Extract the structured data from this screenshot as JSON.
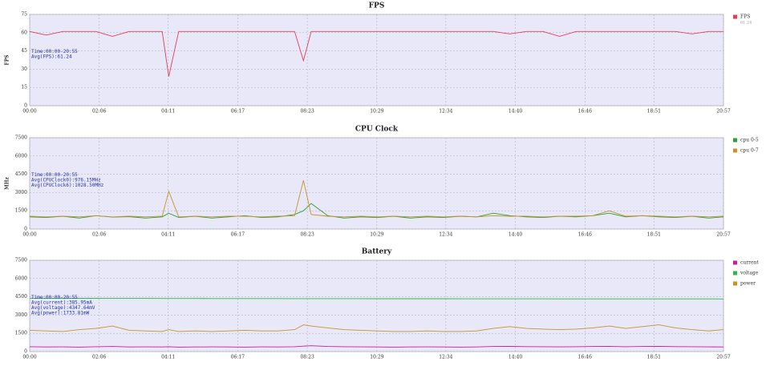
{
  "chart_data": [
    {
      "type": "line",
      "title": "FPS",
      "ylabel": "FPS",
      "x": [
        0,
        30,
        60,
        90,
        120,
        150,
        180,
        210,
        240,
        252,
        270,
        300,
        330,
        360,
        390,
        420,
        450,
        480,
        496,
        510,
        540,
        570,
        600,
        630,
        660,
        690,
        720,
        750,
        780,
        810,
        840,
        870,
        900,
        930,
        960,
        990,
        1020,
        1050,
        1080,
        1110,
        1140,
        1170,
        1200,
        1230,
        1257
      ],
      "xlim": [
        0,
        1257
      ],
      "xticks": [
        {
          "value": 0,
          "label": "00:00"
        },
        {
          "value": 126,
          "label": "02:06"
        },
        {
          "value": 251,
          "label": "04:11"
        },
        {
          "value": 377,
          "label": "06:17"
        },
        {
          "value": 503,
          "label": "08:23"
        },
        {
          "value": 629,
          "label": "10:29"
        },
        {
          "value": 754,
          "label": "12:34"
        },
        {
          "value": 880,
          "label": "14:40"
        },
        {
          "value": 1006,
          "label": "16:46"
        },
        {
          "value": 1131,
          "label": "18:51"
        },
        {
          "value": 1257,
          "label": "20:57"
        }
      ],
      "ylim": [
        0,
        75
      ],
      "yticks": [
        0,
        15,
        30,
        45,
        60,
        75
      ],
      "grid": true,
      "annotations": [
        "Time:00:00-20:55",
        "Avg(FPS):61.24"
      ],
      "legend_note": "61.24",
      "series": [
        {
          "name": "FPS",
          "color": "#e0405a",
          "values": [
            61,
            58,
            61,
            61,
            61,
            57,
            61,
            61,
            61,
            24,
            61,
            61,
            61,
            61,
            61,
            61,
            61,
            61,
            37,
            61,
            61,
            61,
            61,
            61,
            61,
            61,
            61,
            61,
            61,
            61,
            61,
            59,
            61,
            61,
            57,
            61,
            61,
            61,
            61,
            61,
            61,
            61,
            59,
            61,
            61
          ]
        }
      ]
    },
    {
      "type": "line",
      "title": "CPU Clock",
      "ylabel": "MHz",
      "x": [
        0,
        30,
        60,
        90,
        120,
        150,
        180,
        210,
        240,
        252,
        270,
        300,
        330,
        360,
        390,
        420,
        450,
        480,
        496,
        510,
        540,
        570,
        600,
        630,
        660,
        690,
        720,
        750,
        780,
        810,
        840,
        870,
        900,
        930,
        960,
        990,
        1020,
        1050,
        1080,
        1110,
        1140,
        1170,
        1200,
        1230,
        1257
      ],
      "xlim": [
        0,
        1257
      ],
      "xticks": [
        {
          "value": 0,
          "label": "00:00"
        },
        {
          "value": 126,
          "label": "02:06"
        },
        {
          "value": 251,
          "label": "04:11"
        },
        {
          "value": 377,
          "label": "06:17"
        },
        {
          "value": 503,
          "label": "08:23"
        },
        {
          "value": 629,
          "label": "10:29"
        },
        {
          "value": 754,
          "label": "12:34"
        },
        {
          "value": 880,
          "label": "14:40"
        },
        {
          "value": 1006,
          "label": "16:46"
        },
        {
          "value": 1131,
          "label": "18:51"
        },
        {
          "value": 1257,
          "label": "20:57"
        }
      ],
      "ylim": [
        0,
        7500
      ],
      "yticks": [
        0,
        1500,
        3000,
        4500,
        6000,
        7500
      ],
      "grid": true,
      "annotations": [
        "Time:00:00-20:55",
        "Avg(CPUClock0):976.15MHz",
        "Avg(CPUClock6):1028.50MHz"
      ],
      "series": [
        {
          "name": "cpu 0-5",
          "color": "#2ca02c",
          "values": [
            1000,
            950,
            1050,
            900,
            1100,
            980,
            1020,
            900,
            1000,
            1300,
            950,
            1050,
            900,
            1000,
            1100,
            950,
            1000,
            1200,
            1500,
            2100,
            1100,
            900,
            1000,
            950,
            1050,
            900,
            1000,
            950,
            1050,
            1000,
            1300,
            1100,
            1000,
            950,
            1050,
            1000,
            1100,
            1300,
            1000,
            1100,
            1000,
            950,
            1050,
            900,
            1000
          ]
        },
        {
          "name": "cpu 0-7",
          "color": "#c8922a",
          "values": [
            1050,
            1000,
            1050,
            1000,
            1100,
            1000,
            1050,
            1000,
            1050,
            3100,
            1000,
            1050,
            1000,
            1050,
            1050,
            1000,
            1050,
            1100,
            4000,
            1200,
            1050,
            1000,
            1050,
            1000,
            1050,
            1000,
            1050,
            1000,
            1050,
            1000,
            1100,
            1050,
            1050,
            1000,
            1050,
            1050,
            1100,
            1500,
            1050,
            1100,
            1050,
            1000,
            1050,
            1000,
            1050
          ]
        }
      ]
    },
    {
      "type": "line",
      "title": "Battery",
      "x": [
        0,
        30,
        60,
        90,
        120,
        150,
        180,
        210,
        240,
        252,
        270,
        300,
        330,
        360,
        390,
        420,
        450,
        480,
        496,
        510,
        540,
        570,
        600,
        630,
        660,
        690,
        720,
        750,
        780,
        810,
        840,
        870,
        900,
        930,
        960,
        990,
        1020,
        1050,
        1080,
        1110,
        1140,
        1170,
        1200,
        1230,
        1257
      ],
      "xlim": [
        0,
        1257
      ],
      "xticks": [
        {
          "value": 0,
          "label": "00:00"
        },
        {
          "value": 126,
          "label": "02:06"
        },
        {
          "value": 251,
          "label": "04:11"
        },
        {
          "value": 377,
          "label": "06:17"
        },
        {
          "value": 503,
          "label": "08:23"
        },
        {
          "value": 629,
          "label": "10:29"
        },
        {
          "value": 754,
          "label": "12:34"
        },
        {
          "value": 880,
          "label": "14:40"
        },
        {
          "value": 1006,
          "label": "16:46"
        },
        {
          "value": 1131,
          "label": "18:51"
        },
        {
          "value": 1257,
          "label": "20:57"
        }
      ],
      "ylim": [
        0,
        7500
      ],
      "yticks": [
        0,
        1500,
        3000,
        4500,
        6000,
        7500
      ],
      "grid": true,
      "annotations": [
        "Time:00:00-20:55",
        "Avg(current):385.95mA",
        "Avg(voltage):4347.64mV",
        "Avg(power):1733.81mW"
      ],
      "series": [
        {
          "name": "current",
          "color": "#c0209a",
          "values": [
            400,
            380,
            390,
            370,
            400,
            420,
            380,
            390,
            380,
            400,
            370,
            380,
            390,
            380,
            370,
            390,
            380,
            400,
            450,
            480,
            420,
            400,
            390,
            380,
            370,
            380,
            390,
            380,
            370,
            380,
            420,
            430,
            410,
            400,
            390,
            400,
            420,
            430,
            400,
            420,
            430,
            410,
            400,
            390,
            380
          ]
        },
        {
          "name": "voltage",
          "color": "#2cb84a",
          "values": [
            4380,
            4378,
            4376,
            4374,
            4372,
            4370,
            4368,
            4366,
            4364,
            4364,
            4362,
            4360,
            4358,
            4356,
            4356,
            4354,
            4352,
            4350,
            4350,
            4350,
            4348,
            4346,
            4346,
            4344,
            4342,
            4342,
            4340,
            4340,
            4338,
            4338,
            4336,
            4336,
            4334,
            4334,
            4332,
            4332,
            4330,
            4330,
            4330,
            4328,
            4328,
            4326,
            4326,
            4326,
            4324
          ]
        },
        {
          "name": "power",
          "color": "#c8922a",
          "values": [
            1750,
            1700,
            1650,
            1800,
            1900,
            2100,
            1750,
            1700,
            1650,
            1800,
            1650,
            1700,
            1650,
            1700,
            1750,
            1700,
            1700,
            1800,
            2200,
            2100,
            1950,
            1800,
            1750,
            1700,
            1650,
            1650,
            1700,
            1650,
            1650,
            1700,
            1900,
            2050,
            1900,
            1850,
            1800,
            1850,
            1950,
            2100,
            1900,
            2050,
            2200,
            1950,
            1800,
            1700,
            1800
          ]
        }
      ]
    }
  ]
}
